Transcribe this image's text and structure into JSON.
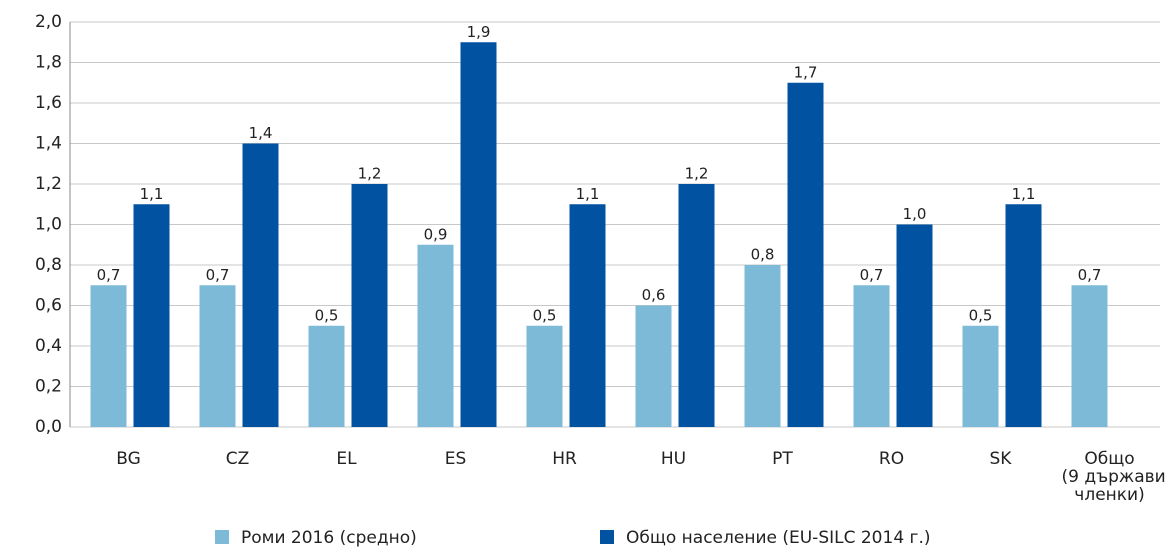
{
  "chart_data": {
    "type": "bar",
    "categories": [
      "BG",
      "CZ",
      "EL",
      "ES",
      "HR",
      "HU",
      "PT",
      "RO",
      "SK",
      "Общо (9 държави членки)"
    ],
    "series": [
      {
        "name": "Роми 2016 (средно)",
        "color": "#7cbad8",
        "values": [
          0.7,
          0.7,
          0.5,
          0.9,
          0.5,
          0.6,
          0.8,
          0.7,
          0.5,
          0.7
        ],
        "value_labels": [
          "0,7",
          "0,7",
          "0,5",
          "0,9",
          "0,5",
          "0,6",
          "0,8",
          "0,7",
          "0,5",
          "0,7"
        ]
      },
      {
        "name": "Общо население (EU-SILC 2014 г.)",
        "color": "#0152a1",
        "values": [
          1.1,
          1.4,
          1.2,
          1.9,
          1.1,
          1.2,
          1.7,
          1.0,
          1.1,
          null
        ],
        "value_labels": [
          "1,1",
          "1,4",
          "1,2",
          "1,9",
          "1,1",
          "1,2",
          "1,7",
          "1,0",
          "1,1",
          null
        ]
      }
    ],
    "ylim": [
      0,
      2
    ],
    "yticks": [
      {
        "value": 0,
        "label": "0,0"
      },
      {
        "value": 0.2,
        "label": "0,2"
      },
      {
        "value": 0.4,
        "label": "0,4"
      },
      {
        "value": 0.6,
        "label": "0,6"
      },
      {
        "value": 0.8,
        "label": "0,8"
      },
      {
        "value": 1,
        "label": "1,0"
      },
      {
        "value": 1.2,
        "label": "1,2"
      },
      {
        "value": 1.4,
        "label": "1,4"
      },
      {
        "value": 1.6,
        "label": "1,6"
      },
      {
        "value": 1.8,
        "label": "1,8"
      },
      {
        "value": 2,
        "label": "2,0"
      }
    ],
    "grid": true,
    "legend": "bottom"
  }
}
